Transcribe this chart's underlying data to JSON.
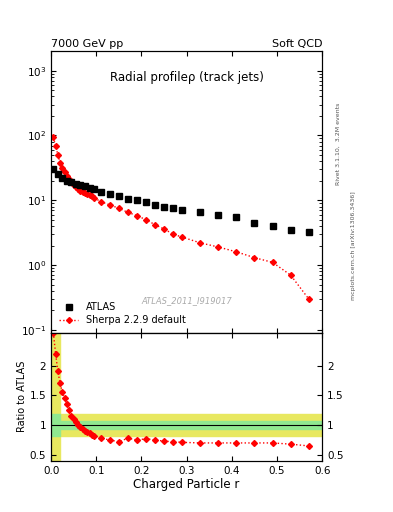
{
  "title_left": "7000 GeV pp",
  "title_right": "Soft QCD",
  "main_title": "Radial profileρ (track jets)",
  "right_label_top": "Rivet 3.1.10,  3.2M events",
  "right_label_bot": "mcplots.cern.ch [arXiv:1306.3436]",
  "watermark": "ATLAS_2011_I919017",
  "xlabel": "Charged Particle r",
  "ylabel_ratio": "Ratio to ATLAS",
  "atlas_x": [
    0.005,
    0.015,
    0.025,
    0.035,
    0.045,
    0.055,
    0.065,
    0.075,
    0.085,
    0.095,
    0.11,
    0.13,
    0.15,
    0.17,
    0.19,
    0.21,
    0.23,
    0.25,
    0.27,
    0.29,
    0.33,
    0.37,
    0.41,
    0.45,
    0.49,
    0.53,
    0.57
  ],
  "atlas_y": [
    30,
    25,
    22,
    20,
    19,
    18,
    17,
    16.5,
    15.5,
    15,
    13.5,
    12.5,
    11.5,
    10.5,
    10,
    9.5,
    8.5,
    8,
    7.5,
    7,
    6.5,
    6,
    5.5,
    4.5,
    4,
    3.5,
    3.2
  ],
  "sherpa_x": [
    0.005,
    0.01,
    0.015,
    0.02,
    0.025,
    0.03,
    0.035,
    0.04,
    0.045,
    0.05,
    0.055,
    0.06,
    0.065,
    0.07,
    0.075,
    0.08,
    0.085,
    0.09,
    0.095,
    0.11,
    0.13,
    0.15,
    0.17,
    0.19,
    0.21,
    0.23,
    0.25,
    0.27,
    0.29,
    0.33,
    0.37,
    0.41,
    0.45,
    0.49,
    0.53,
    0.57
  ],
  "sherpa_y": [
    95,
    70,
    50,
    38,
    32,
    27,
    24,
    21,
    19,
    17,
    16,
    15,
    14,
    13.5,
    13,
    12.5,
    12,
    11.5,
    11,
    9.5,
    8.5,
    7.5,
    6.5,
    5.8,
    5.0,
    4.2,
    3.6,
    3.0,
    2.7,
    2.2,
    1.9,
    1.6,
    1.3,
    1.1,
    0.7,
    0.3
  ],
  "ratio_x": [
    0.005,
    0.01,
    0.015,
    0.02,
    0.025,
    0.03,
    0.035,
    0.04,
    0.045,
    0.05,
    0.055,
    0.06,
    0.065,
    0.07,
    0.075,
    0.08,
    0.085,
    0.09,
    0.095,
    0.11,
    0.13,
    0.15,
    0.17,
    0.19,
    0.21,
    0.23,
    0.25,
    0.27,
    0.29,
    0.33,
    0.37,
    0.41,
    0.45,
    0.49,
    0.53,
    0.57
  ],
  "ratio_y": [
    2.55,
    2.2,
    1.9,
    1.7,
    1.55,
    1.45,
    1.35,
    1.25,
    1.15,
    1.1,
    1.05,
    1.0,
    0.97,
    0.93,
    0.9,
    0.88,
    0.86,
    0.84,
    0.82,
    0.78,
    0.75,
    0.72,
    0.78,
    0.75,
    0.77,
    0.75,
    0.73,
    0.72,
    0.71,
    0.7,
    0.7,
    0.7,
    0.7,
    0.7,
    0.68,
    0.65
  ],
  "green_color": "#90e890",
  "yellow_color": "#e8e860",
  "atlas_color": "black",
  "sherpa_color": "red",
  "xlim": [
    0.0,
    0.6
  ],
  "ylim_main_lo": 0.09,
  "ylim_main_hi": 2000,
  "ylim_ratio_lo": 0.4,
  "ylim_ratio_hi": 2.55,
  "ratio_yticks": [
    0.5,
    1.0,
    1.5,
    2.0
  ],
  "ratio_yticklabels": [
    "0.5",
    "1",
    "1.5",
    "2"
  ],
  "green_band_lo": 0.93,
  "green_band_hi": 1.07,
  "yellow_band_lo": 0.82,
  "yellow_band_hi": 1.18,
  "yellow_near_lo": 0.4,
  "yellow_near_hi": 2.55
}
